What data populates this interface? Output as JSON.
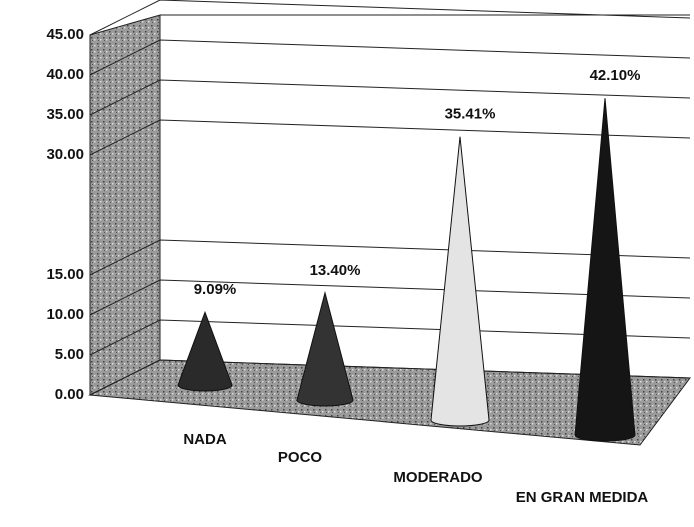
{
  "chart_data": {
    "type": "cone",
    "categories": [
      "NADA",
      "POCO",
      "MODERADO",
      "EN GRAN MEDIDA"
    ],
    "values": [
      9.09,
      13.4,
      35.41,
      42.1
    ],
    "value_labels": [
      "9.09%",
      "13.40%",
      "35.41%",
      "42.10%"
    ],
    "colors": [
      "#2a2a2a",
      "#333333",
      "#e4e4e4",
      "#151515"
    ],
    "ylim": [
      0,
      45
    ],
    "yticks": [
      {
        "value": 0,
        "label": "0.00"
      },
      {
        "value": 5,
        "label": "5.00"
      },
      {
        "value": 10,
        "label": "10.00"
      },
      {
        "value": 15,
        "label": "15.00"
      },
      {
        "value": 30,
        "label": "30.00"
      },
      {
        "value": 35,
        "label": "35.00"
      },
      {
        "value": 40,
        "label": "40.00"
      },
      {
        "value": 45,
        "label": "45.00"
      }
    ],
    "grid": true
  }
}
